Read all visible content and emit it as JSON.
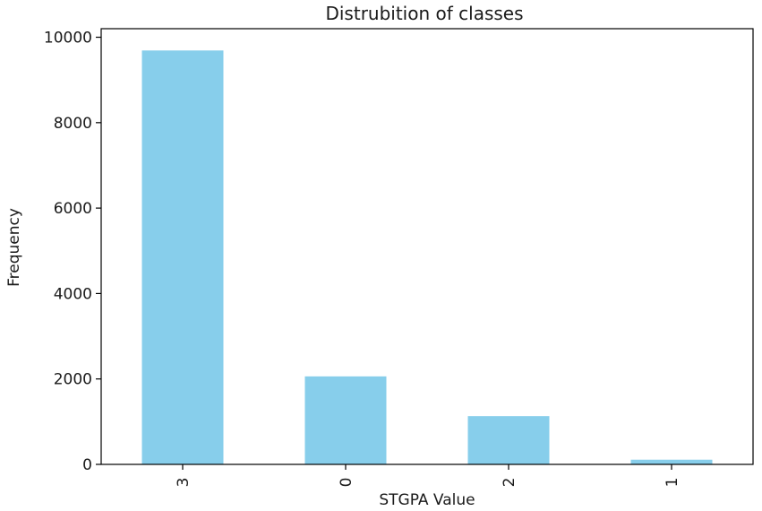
{
  "chart_data": {
    "type": "bar",
    "title": "Distrubition of classes",
    "xlabel": "STGPA Value",
    "ylabel": "Frequency",
    "categories": [
      "3",
      "0",
      "2",
      "1"
    ],
    "values": [
      9690,
      2060,
      1130,
      110
    ],
    "ylim": [
      0,
      10200
    ],
    "yticks": [
      0,
      2000,
      4000,
      6000,
      8000,
      10000
    ],
    "xtick_rotation": 90,
    "bar_color": "#87ceeb",
    "grid": false,
    "legend": "none"
  }
}
